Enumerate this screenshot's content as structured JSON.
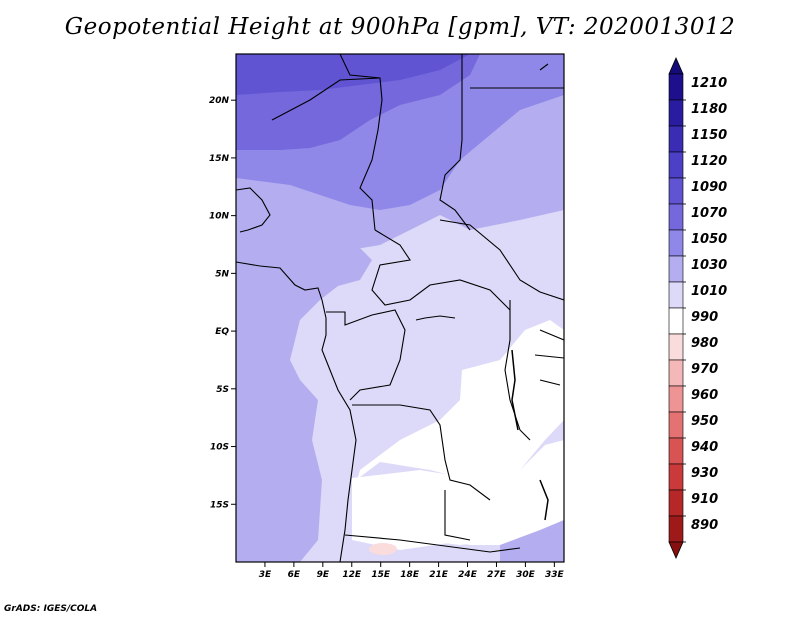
{
  "title": "Geopotential Height at 900hPa [gpm], VT: 2020013012",
  "credit": "GrADS: IGES/COLA",
  "map": {
    "region": "Central Africa",
    "lat_ticks": [
      {
        "lat": 20,
        "label": "20N"
      },
      {
        "lat": 15,
        "label": "15N"
      },
      {
        "lat": 10,
        "label": "10N"
      },
      {
        "lat": 5,
        "label": "5N"
      },
      {
        "lat": 0,
        "label": "EQ"
      },
      {
        "lat": -5,
        "label": "5S"
      },
      {
        "lat": -10,
        "label": "10S"
      },
      {
        "lat": -15,
        "label": "15S"
      }
    ],
    "lon_ticks": [
      {
        "lon": 3,
        "label": "3E"
      },
      {
        "lon": 6,
        "label": "6E"
      },
      {
        "lon": 9,
        "label": "9E"
      },
      {
        "lon": 12,
        "label": "12E"
      },
      {
        "lon": 15,
        "label": "15E"
      },
      {
        "lon": 18,
        "label": "18E"
      },
      {
        "lon": 21,
        "label": "21E"
      },
      {
        "lon": 24,
        "label": "24E"
      },
      {
        "lon": 27,
        "label": "27E"
      },
      {
        "lon": 30,
        "label": "30E"
      },
      {
        "lon": 33,
        "label": "33E"
      }
    ]
  },
  "colorbar": {
    "levels": [
      {
        "label": "1210",
        "color": "#1e0f8c"
      },
      {
        "label": "1180",
        "color": "#2a1ca0"
      },
      {
        "label": "1150",
        "color": "#3a2db4"
      },
      {
        "label": "1120",
        "color": "#4c40c6"
      },
      {
        "label": "1090",
        "color": "#6054d2"
      },
      {
        "label": "1070",
        "color": "#7468dc"
      },
      {
        "label": "1050",
        "color": "#9088e8"
      },
      {
        "label": "1030",
        "color": "#b4aef0"
      },
      {
        "label": "1010",
        "color": "#dcdaf8"
      },
      {
        "label": "990",
        "color": "#ffffff"
      },
      {
        "label": "980",
        "color": "#fbdcdc"
      },
      {
        "label": "970",
        "color": "#f5b8b8"
      },
      {
        "label": "960",
        "color": "#ee9494"
      },
      {
        "label": "950",
        "color": "#e47272"
      },
      {
        "label": "940",
        "color": "#d85454"
      },
      {
        "label": "930",
        "color": "#ca3a3a"
      },
      {
        "label": "910",
        "color": "#b62828"
      },
      {
        "label": "890",
        "color": "#9e1a1a"
      }
    ],
    "top_color": "#150a7a",
    "bottom_color": "#861010"
  }
}
